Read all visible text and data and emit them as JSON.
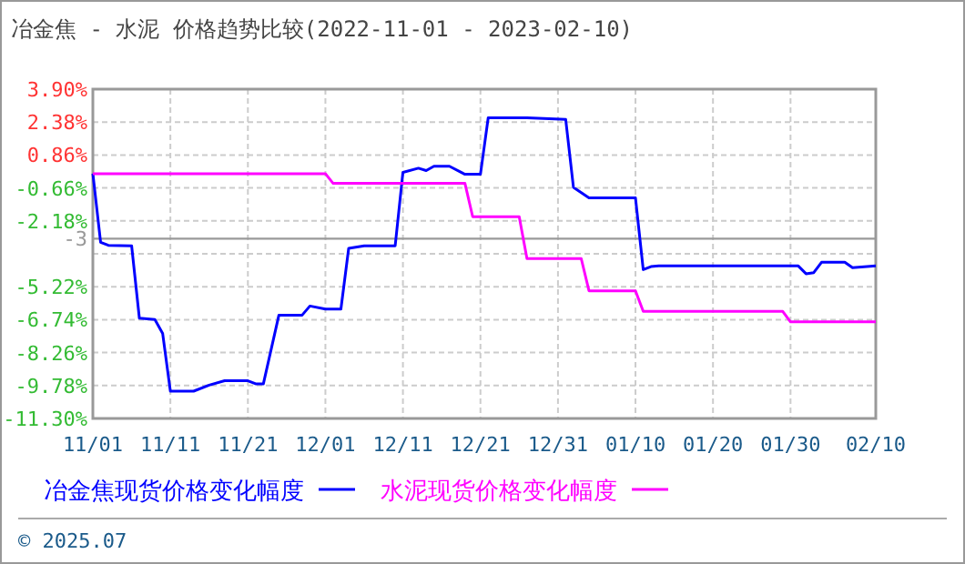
{
  "chart_data": {
    "type": "line",
    "title": "冶金焦 - 水泥 价格趋势比较(2022-11-01 - 2023-02-10)",
    "ylim": [
      -11.3,
      3.9
    ],
    "yticks": [
      {
        "value": 3.9,
        "label": "3.90%"
      },
      {
        "value": 2.38,
        "label": "2.38%"
      },
      {
        "value": 0.86,
        "label": "0.86%"
      },
      {
        "value": -0.66,
        "label": "-0.66%"
      },
      {
        "value": -2.18,
        "label": "-2.18%"
      },
      {
        "value": -3.7,
        "label": null
      },
      {
        "value": -5.22,
        "label": "-5.22%"
      },
      {
        "value": -6.74,
        "label": "-6.74%"
      },
      {
        "value": -8.26,
        "label": "-8.26%"
      },
      {
        "value": -9.78,
        "label": "-9.78%"
      },
      {
        "value": -11.3,
        "label": "-11.30%"
      }
    ],
    "xlim": [
      "2022-11-01",
      "2023-02-10"
    ],
    "xticks": [
      {
        "value": "2022-11-01",
        "label": "11/01"
      },
      {
        "value": "2022-11-11",
        "label": "11/11"
      },
      {
        "value": "2022-11-21",
        "label": "11/21"
      },
      {
        "value": "2022-12-01",
        "label": "12/01"
      },
      {
        "value": "2022-12-11",
        "label": "12/11"
      },
      {
        "value": "2022-12-21",
        "label": "12/21"
      },
      {
        "value": "2022-12-31",
        "label": "12/31"
      },
      {
        "value": "2023-01-10",
        "label": "01/10"
      },
      {
        "value": "2023-01-20",
        "label": "01/20"
      },
      {
        "value": "2023-01-30",
        "label": "01/30"
      },
      {
        "value": "2023-02-10",
        "label": "02/10"
      }
    ],
    "grid": true,
    "legend": "bottom",
    "marker": "none",
    "line_style": "solid",
    "ref_lines": [
      {
        "axis": "y",
        "value": -3,
        "label": "-3",
        "color": "#999999"
      }
    ],
    "annotations": [
      "© 2025.07"
    ],
    "series": [
      {
        "name": "冶金焦现货价格变化幅度",
        "color": "#0000ff",
        "x": [
          "2022-11-01",
          "2022-11-02",
          "2022-11-03",
          "2022-11-06",
          "2022-11-07",
          "2022-11-09",
          "2022-11-10",
          "2022-11-11",
          "2022-11-14",
          "2022-11-16",
          "2022-11-18",
          "2022-11-21",
          "2022-11-22",
          "2022-11-23",
          "2022-11-25",
          "2022-11-28",
          "2022-11-29",
          "2022-12-01",
          "2022-12-03",
          "2022-12-04",
          "2022-12-06",
          "2022-12-10",
          "2022-12-11",
          "2022-12-13",
          "2022-12-14",
          "2022-12-15",
          "2022-12-17",
          "2022-12-19",
          "2022-12-21",
          "2022-12-22",
          "2022-12-27",
          "2023-01-01",
          "2023-01-02",
          "2023-01-04",
          "2023-01-10",
          "2023-01-11",
          "2023-01-12",
          "2023-01-13",
          "2023-01-31",
          "2023-02-01",
          "2023-02-02",
          "2023-02-03",
          "2023-02-06",
          "2023-02-07",
          "2023-02-10"
        ],
        "values": [
          0,
          -3.17,
          -3.31,
          -3.33,
          -6.67,
          -6.73,
          -7.37,
          -10.04,
          -10.04,
          -9.76,
          -9.56,
          -9.56,
          -9.7,
          -9.7,
          -6.53,
          -6.53,
          -6.11,
          -6.25,
          -6.25,
          -3.45,
          -3.33,
          -3.33,
          0.06,
          0.25,
          0.14,
          0.34,
          0.34,
          -0.03,
          -0.03,
          2.58,
          2.58,
          2.5,
          -0.64,
          -1.12,
          -1.12,
          -4.43,
          -4.29,
          -4.26,
          -4.26,
          -4.62,
          -4.57,
          -4.09,
          -4.09,
          -4.34,
          -4.26
        ]
      },
      {
        "name": "水泥现货价格变化幅度",
        "color": "#ff00ff",
        "x": [
          "2022-11-01",
          "2022-12-01",
          "2022-12-02",
          "2022-12-19",
          "2022-12-20",
          "2022-12-26",
          "2022-12-27",
          "2023-01-03",
          "2023-01-04",
          "2023-01-10",
          "2023-01-11",
          "2023-01-29",
          "2023-01-30",
          "2023-02-10"
        ],
        "values": [
          0,
          0,
          -0.45,
          -0.45,
          -1.99,
          -1.99,
          -3.92,
          -3.92,
          -5.41,
          -5.41,
          -6.36,
          -6.36,
          -6.84,
          -6.84
        ]
      }
    ]
  }
}
